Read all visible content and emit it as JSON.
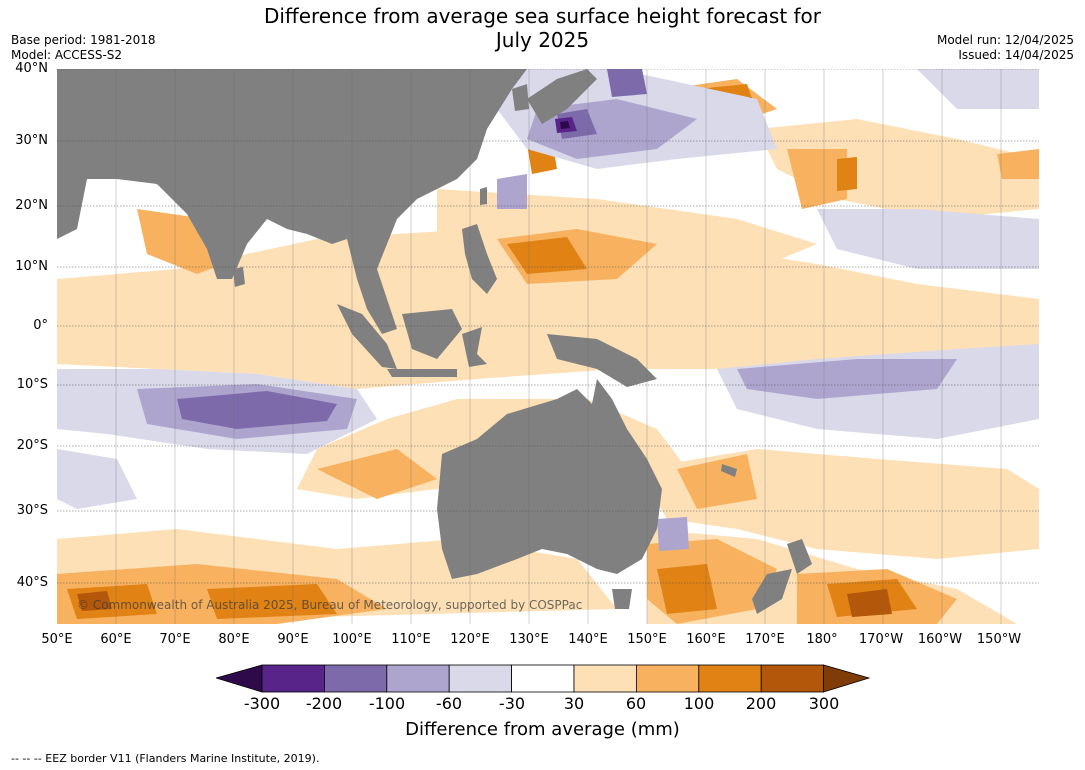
{
  "title_line1": "Difference from average sea surface height forecast for",
  "title_line2": "July 2025",
  "base_period": "Base period: 1981-2018",
  "model": "Model: ACCESS-S2",
  "model_run": "Model run: 12/04/2025",
  "issued": "Issued: 14/04/2025",
  "copyright": "© Commonwealth of Australia 2025, Bureau of Meteorology, supported by COSPPac",
  "footer": "--  --  -- EEZ border V11 (Flanders Marine Institute, 2019).",
  "lat_labels": [
    "40°N",
    "30°N",
    "20°N",
    "10°N",
    "0°",
    "10°S",
    "20°S",
    "30°S",
    "40°S"
  ],
  "lon_labels": [
    "50°E",
    "60°E",
    "70°E",
    "80°E",
    "90°E",
    "100°E",
    "110°E",
    "120°E",
    "130°E",
    "140°E",
    "150°E",
    "160°E",
    "170°E",
    "180°",
    "170°W",
    "160°W",
    "150°W"
  ],
  "colorbar": {
    "label": "Difference from average (mm)",
    "ticks": [
      "-300",
      "-200",
      "-100",
      "-60",
      "-30",
      "30",
      "60",
      "100",
      "200",
      "300"
    ],
    "colors": [
      "#2e0a4a",
      "#58248a",
      "#7d6aab",
      "#ada5ce",
      "#d9d9ea",
      "#ffffff",
      "#fde0b6",
      "#f8b25f",
      "#e08214",
      "#b3570a",
      "#7f3b08"
    ]
  },
  "land_color": "#808080"
}
